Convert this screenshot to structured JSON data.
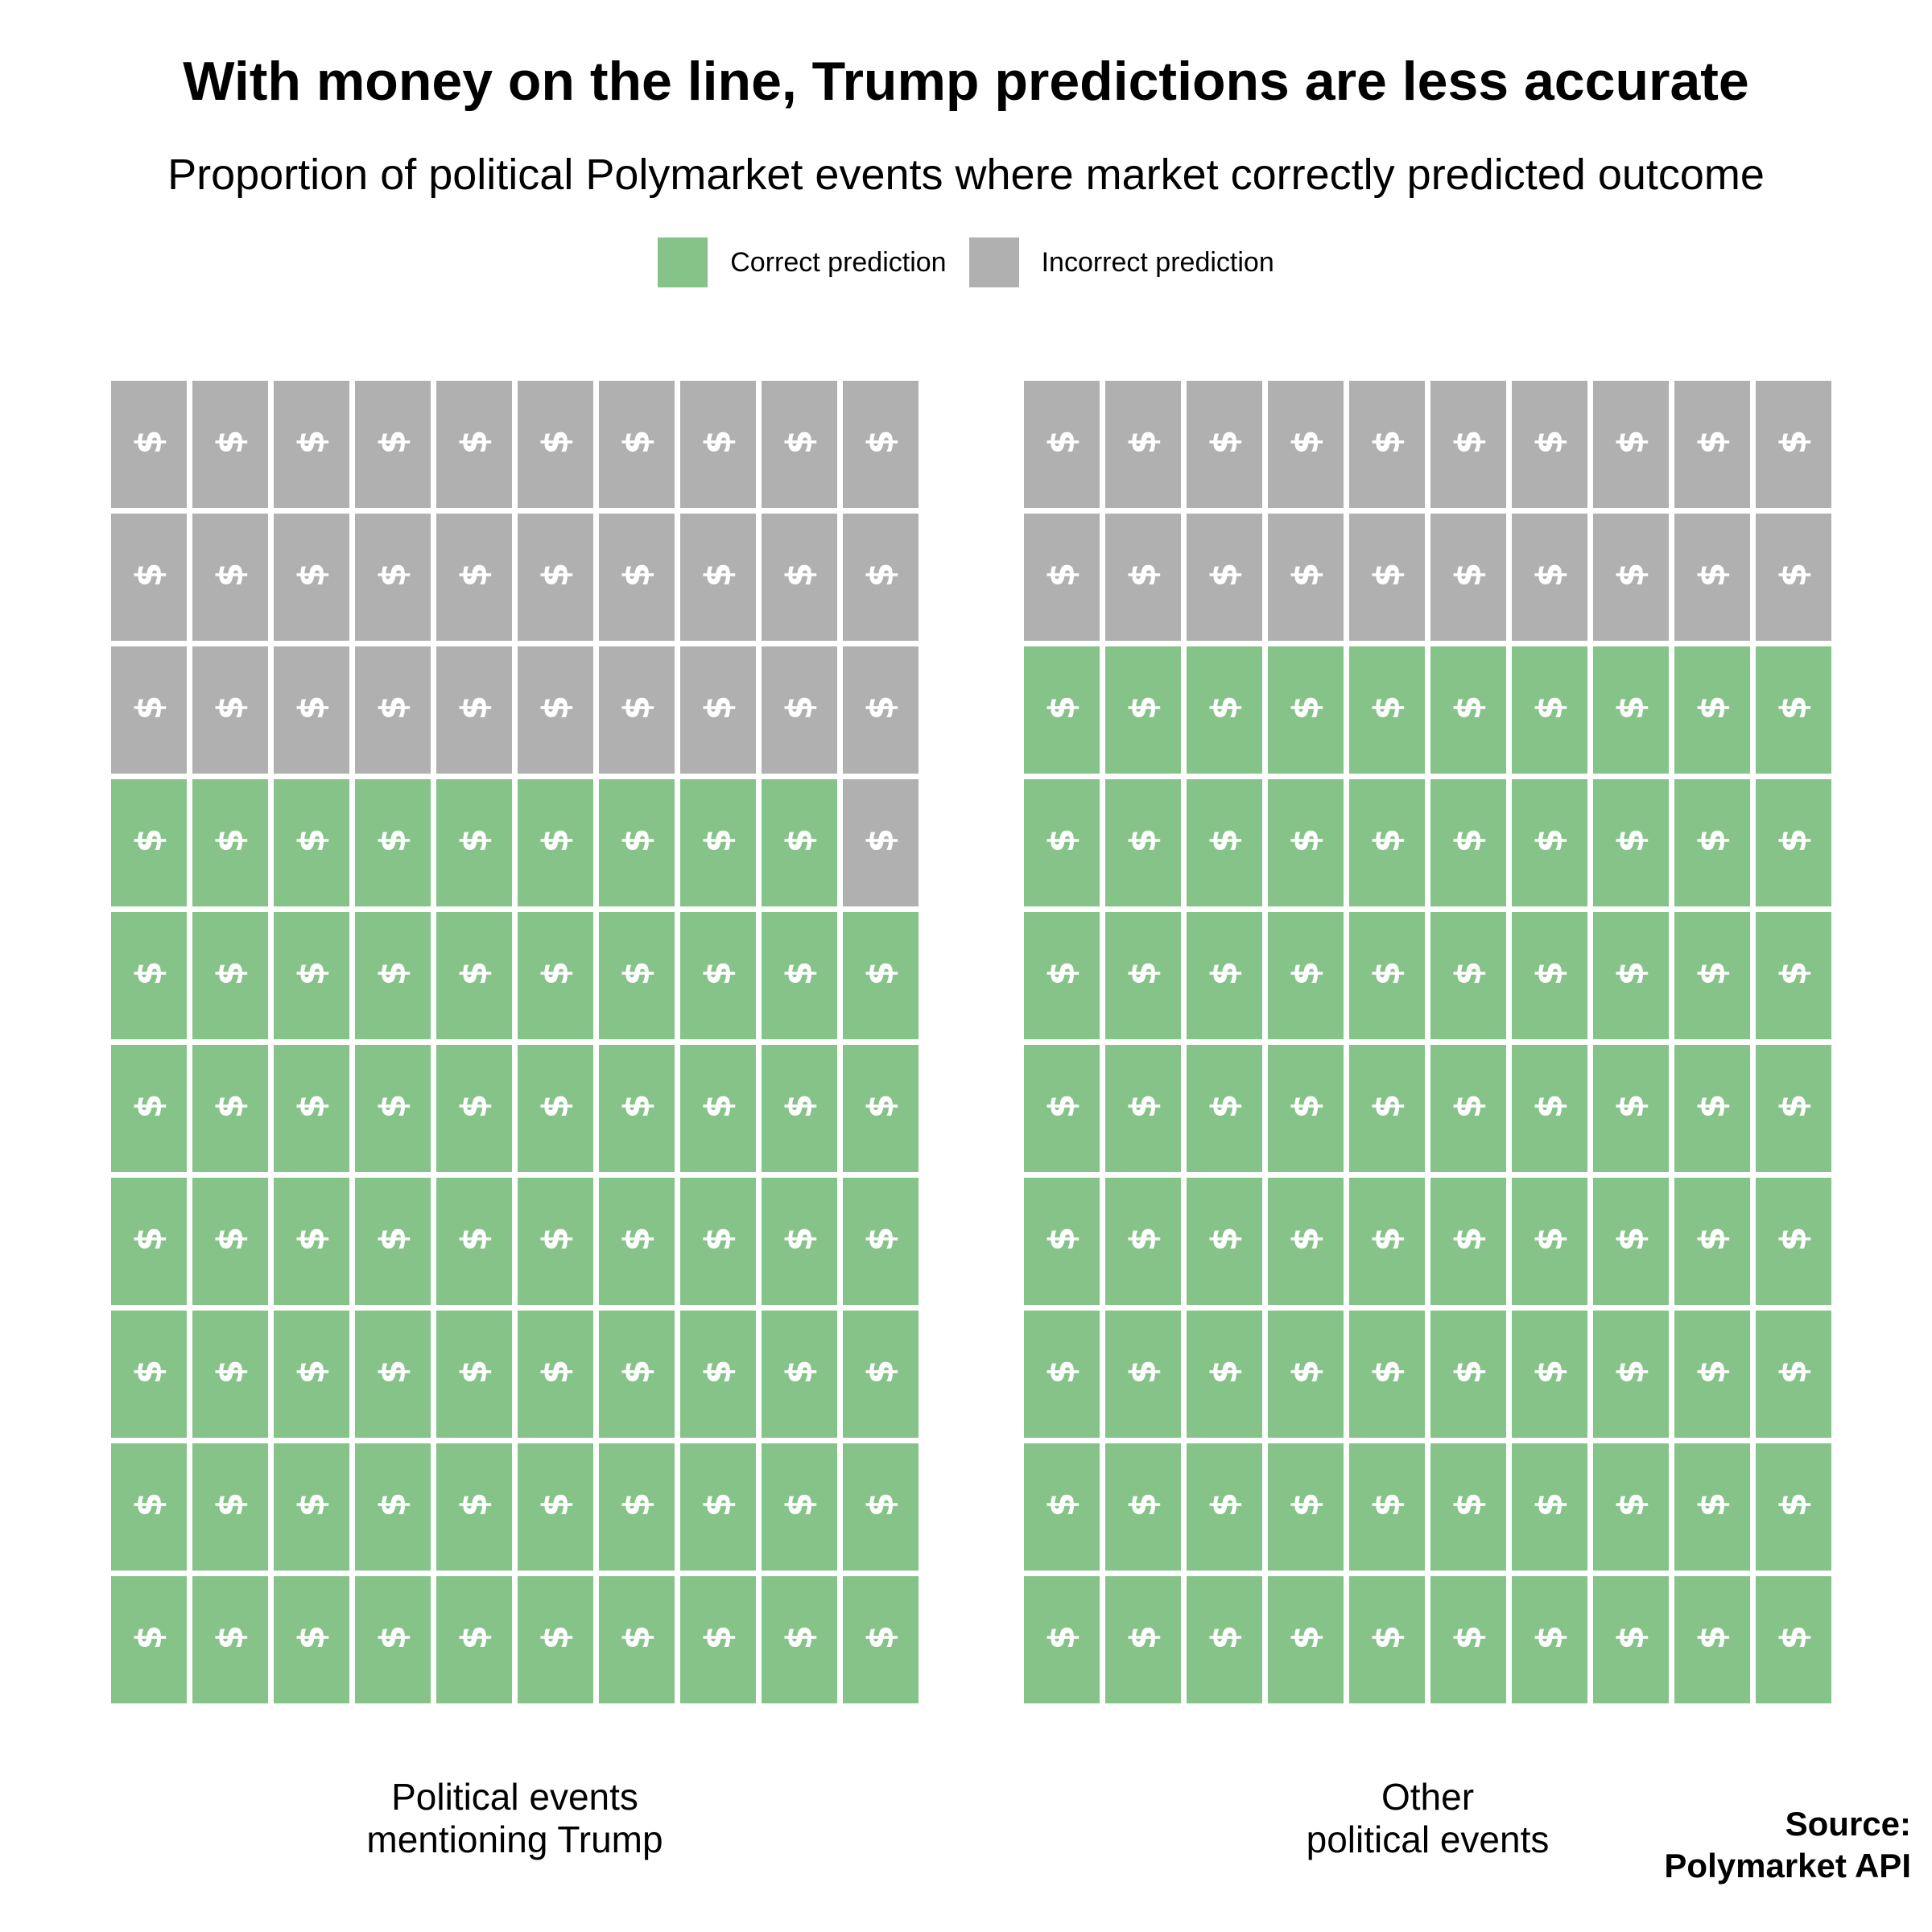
{
  "chart_data": {
    "type": "waffle",
    "title": "With money on the line, Trump predictions are less accurate",
    "subtitle": "Proportion of political Polymarket events where market correctly predicted outcome",
    "legend": {
      "position": "top",
      "items": [
        {
          "label": "Correct prediction",
          "color": "#86c389"
        },
        {
          "label": "Incorrect prediction",
          "color": "#b0b0b0"
        }
      ]
    },
    "units_per_panel": 100,
    "grid": {
      "rows": 10,
      "cols": 10
    },
    "symbol": "$",
    "panels": [
      {
        "label": [
          "Political events",
          "mentioning Trump"
        ],
        "correct": 69,
        "incorrect": 31
      },
      {
        "label": [
          "Other",
          "political events"
        ],
        "correct": 80,
        "incorrect": 20
      }
    ]
  },
  "source": [
    "Source:",
    "Polymarket API"
  ]
}
